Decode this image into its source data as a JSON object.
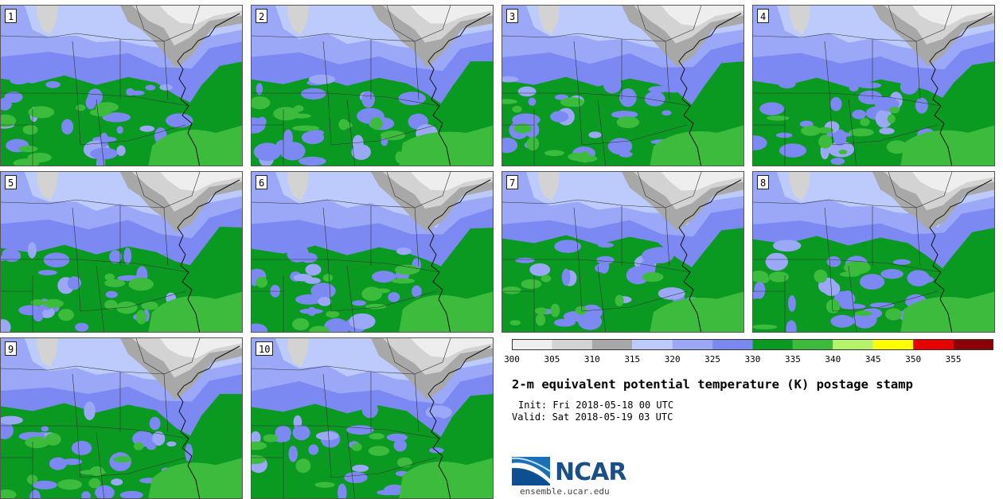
{
  "title": "2-m equivalent potential temperature (K) postage stamp",
  "init_text": "Init: Fri 2018-05-18 00 UTC",
  "valid_text": "Valid: Sat 2018-05-19 03 UTC",
  "logo_text": "NCAR",
  "site_text": "ensemble.ucar.edu",
  "members": [
    "1",
    "2",
    "3",
    "4",
    "5",
    "6",
    "7",
    "8",
    "9",
    "10"
  ],
  "colorbar": {
    "ticks": [
      "300",
      "305",
      "310",
      "315",
      "320",
      "325",
      "330",
      "335",
      "340",
      "345",
      "350",
      "355"
    ],
    "colors": [
      "#eeeeee",
      "#d3d3d3",
      "#a8a8a8",
      "#bccbfb",
      "#9aa8f7",
      "#7d89f2",
      "#0a9a22",
      "#3dbb3d",
      "#b5f36a",
      "#ffff00",
      "#e80000",
      "#8b0000"
    ]
  },
  "colors": {
    "ocean": "#0a9a22",
    "land_green": "#0a9a22",
    "land_light_green": "#3dbb3d",
    "blue_dark": "#7d89f2",
    "blue_mid": "#9aa8f7",
    "blue_light": "#bccbfb",
    "gray_dark": "#a8a8a8",
    "gray_mid": "#d3d3d3",
    "gray_light": "#eeeeee",
    "logo_blue": "#1b4f8a"
  }
}
